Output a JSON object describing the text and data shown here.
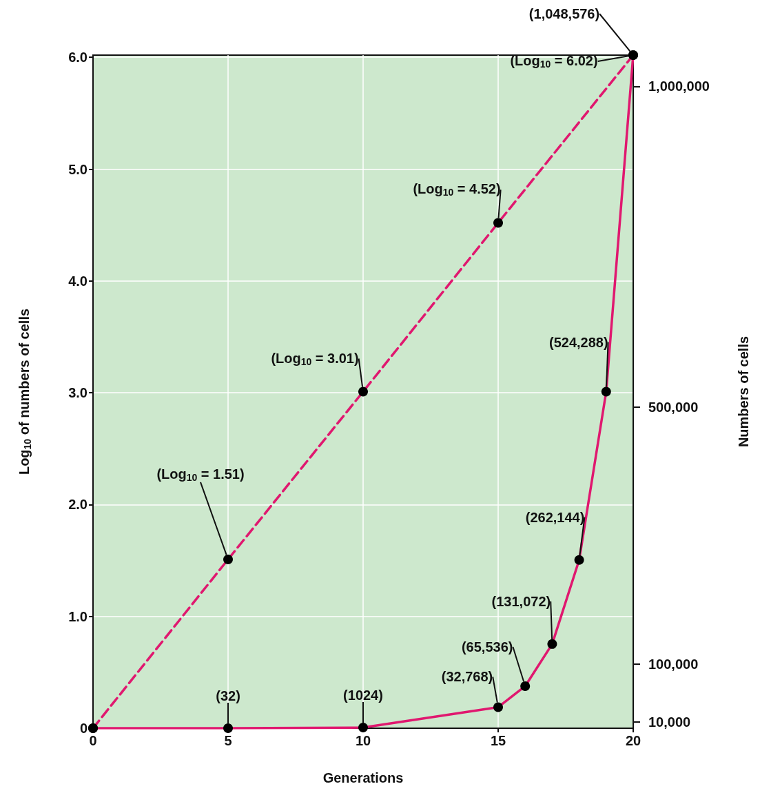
{
  "chart_data": {
    "type": "line",
    "xlabel": "Generations",
    "ylabel": "Log$_{10}$ of numbers of cells",
    "y2label": "Numbers of cells",
    "xlim": [
      0,
      20
    ],
    "xticks": [
      0,
      5,
      10,
      15,
      20
    ],
    "ylim": [
      0,
      6.02
    ],
    "yticks": [
      0,
      {
        "value": 1,
        "label": "1.0"
      },
      {
        "value": 2,
        "label": "2.0"
      },
      {
        "value": 3,
        "label": "3.0"
      },
      {
        "value": 4,
        "label": "4.0"
      },
      {
        "value": 5,
        "label": "5.0"
      },
      {
        "value": 6,
        "label": "6.0"
      }
    ],
    "y2lim": [
      0,
      1048576
    ],
    "y2ticks": [
      {
        "value": 10000,
        "label": "10,000"
      },
      {
        "value": 100000,
        "label": "100,000"
      },
      {
        "value": 500000,
        "label": "500,000"
      },
      {
        "value": 1000000,
        "label": "1,000,000"
      }
    ],
    "grid": true,
    "marker": "circle",
    "series": [
      {
        "color": "#e0186f",
        "line_style": "dashed",
        "x": [
          0,
          5,
          10,
          15,
          20
        ],
        "values": [
          0,
          1.51,
          3.01,
          4.52,
          6.02
        ],
        "value_labels": [
          null,
          "(Log$_{10}$ = 1.51)",
          "(Log$_{10}$ = 3.01)",
          "(Log$_{10}$ = 4.52)",
          "(Log$_{10}$ = 6.02)"
        ]
      },
      {
        "color": "#e0186f",
        "line_style": "solid",
        "axis": "y2",
        "x": [
          0,
          5,
          10,
          15,
          16,
          17,
          18,
          19,
          20
        ],
        "values": [
          1,
          32,
          1024,
          32768,
          65536,
          131072,
          262144,
          524288,
          1048576
        ],
        "value_labels": [
          null,
          "(32)",
          "(1024)",
          "(32,768)",
          "(65,536)",
          "(131,072)",
          "(262,144)",
          "(524,288)",
          "(1,048,576)"
        ]
      }
    ]
  }
}
